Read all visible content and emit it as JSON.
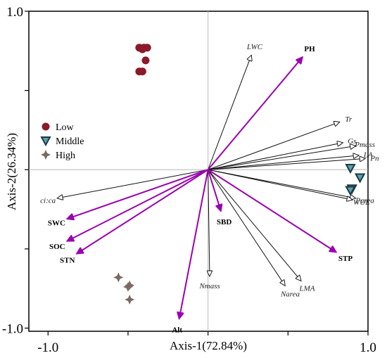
{
  "chart_data": {
    "type": "scatter",
    "title": "",
    "xlabel": "Axis-1(72.84%)",
    "ylabel": "Axis-2(26.34%)",
    "xlim": [
      -1.12,
      1.0
    ],
    "ylim": [
      -1.02,
      1.0
    ],
    "x_ticks": [
      -1.0,
      1.0
    ],
    "x_tick_labels": [
      "-1.0",
      "1.0"
    ],
    "y_ticks": [
      -1.0,
      1.0
    ],
    "y_tick_labels": [
      "-1.0",
      "1.0"
    ],
    "grid": false,
    "legend": {
      "placement": "center-left",
      "entries": [
        "Low",
        "Middle",
        "High"
      ]
    },
    "series": [
      {
        "name": "Low",
        "marker": "circle",
        "color": "#8b1a2b",
        "points": [
          [
            -0.43,
            0.77
          ],
          [
            -0.4,
            0.77
          ],
          [
            -0.38,
            0.77
          ],
          [
            -0.41,
            0.76
          ],
          [
            -0.39,
            0.69
          ],
          [
            -0.43,
            0.62
          ],
          [
            -0.41,
            0.62
          ]
        ]
      },
      {
        "name": "Middle",
        "marker": "triangle-down",
        "color": "#1d3a44",
        "points": [
          [
            0.89,
            0.01
          ],
          [
            0.95,
            -0.05
          ],
          [
            0.9,
            -0.12
          ],
          [
            0.89,
            -0.13
          ]
        ]
      },
      {
        "name": "High",
        "marker": "star4",
        "color": "#7a6a62",
        "points": [
          [
            -0.56,
            -0.68
          ],
          [
            -0.5,
            -0.74
          ],
          [
            -0.49,
            -0.73
          ],
          [
            -0.49,
            -0.82
          ]
        ]
      }
    ],
    "variable_vectors": [
      {
        "label": "LWC",
        "x": 0.27,
        "y": 0.72
      },
      {
        "label": "Tr",
        "x": 0.82,
        "y": 0.3
      },
      {
        "label": "Gs",
        "x": 0.84,
        "y": 0.17
      },
      {
        "label": "Pmass",
        "x": 0.92,
        "y": 0.15
      },
      {
        "label": "LA",
        "x": 0.94,
        "y": 0.09
      },
      {
        "label": "Pn",
        "x": 0.98,
        "y": 0.07
      },
      {
        "label": "Parea",
        "x": 0.92,
        "y": -0.18
      },
      {
        "label": "WUE",
        "x": 0.9,
        "y": -0.19
      },
      {
        "label": "LMA",
        "x": 0.58,
        "y": -0.7
      },
      {
        "label": "Narea",
        "x": 0.48,
        "y": -0.73
      },
      {
        "label": "Nmass",
        "x": 0.01,
        "y": -0.67
      },
      {
        "label": "ci:ca",
        "x": -0.94,
        "y": -0.18
      }
    ],
    "environment_vectors": [
      {
        "label": "PH",
        "x": 0.59,
        "y": 0.71
      },
      {
        "label": "SBD",
        "x": 0.08,
        "y": -0.26
      },
      {
        "label": "STP",
        "x": 0.8,
        "y": -0.52
      },
      {
        "label": "SWC",
        "x": -0.88,
        "y": -0.31
      },
      {
        "label": "SOC",
        "x": -0.88,
        "y": -0.45
      },
      {
        "label": "STN",
        "x": -0.82,
        "y": -0.53
      },
      {
        "label": "Alt",
        "x": -0.18,
        "y": -0.94
      }
    ],
    "colors": {
      "variable_arrow": "#111111",
      "environment_arrow": "#9b00b0",
      "frame": "#000000",
      "zero_lines": "#b8b8b8"
    }
  }
}
